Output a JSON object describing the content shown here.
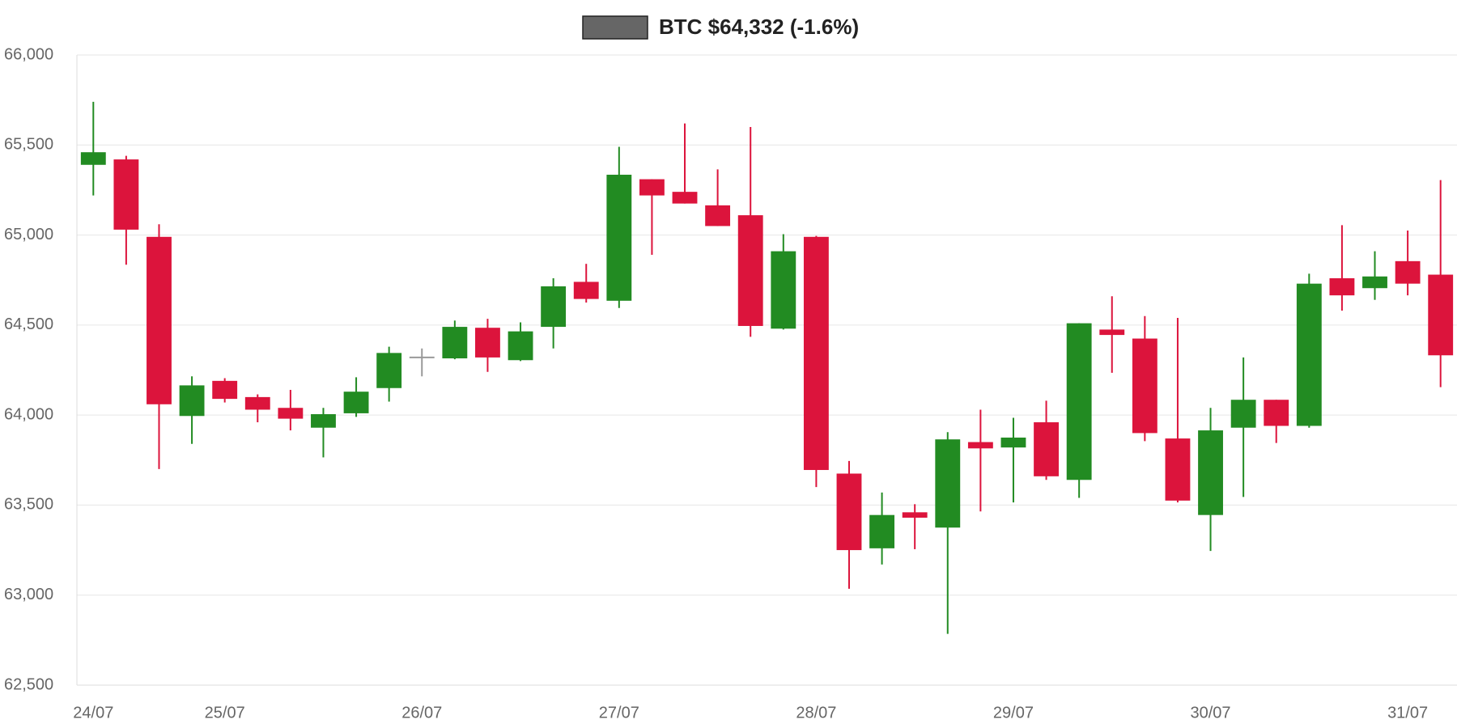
{
  "chart_data": {
    "type": "candlestick",
    "series": [
      {
        "name": "BTC $64,332 (-1.6%)",
        "color": "#666666",
        "open": [
          65390,
          65420,
          64990,
          63995,
          64190,
          64100,
          64040,
          63930,
          64010,
          64150,
          64320,
          64315,
          64485,
          64305,
          64490,
          64740,
          64635,
          65310,
          65240,
          65165,
          65110,
          64480,
          64990,
          63675,
          63260,
          63460,
          63375,
          63850,
          63820,
          63960,
          63640,
          64475,
          64425,
          63870,
          63445,
          63930,
          64085,
          63940,
          64760,
          64705,
          64855,
          64780
        ],
        "high": [
          65740,
          65440,
          65060,
          64215,
          64205,
          64115,
          64140,
          64040,
          64210,
          64380,
          64370,
          64525,
          64535,
          64515,
          64760,
          64840,
          65490,
          65310,
          65620,
          65365,
          65600,
          65005,
          64995,
          63745,
          63570,
          63505,
          63905,
          64030,
          63985,
          64080,
          64510,
          64660,
          64550,
          64540,
          64040,
          64320,
          64085,
          64785,
          65055,
          64910,
          65025,
          65305
        ],
        "low": [
          65220,
          64835,
          63700,
          63840,
          64070,
          63960,
          63915,
          63765,
          63990,
          64075,
          64215,
          64310,
          64240,
          64300,
          64370,
          64625,
          64595,
          64890,
          65175,
          65050,
          64435,
          64475,
          63600,
          63035,
          63170,
          63255,
          62785,
          63465,
          63515,
          63640,
          63540,
          64235,
          63855,
          63515,
          63245,
          63545,
          63845,
          63930,
          64580,
          64640,
          64665,
          64155
        ],
        "close": [
          65460,
          65030,
          64060,
          64165,
          64090,
          64030,
          63980,
          64005,
          64130,
          64345,
          64320,
          64490,
          64320,
          64465,
          64715,
          64645,
          65335,
          65220,
          65175,
          65050,
          64495,
          64910,
          63695,
          63250,
          63445,
          63430,
          63865,
          63815,
          63875,
          63660,
          64510,
          64445,
          63900,
          63525,
          63915,
          64085,
          63940,
          64730,
          64665,
          64770,
          64730,
          64332
        ]
      }
    ],
    "categories": [
      "24/07",
      null,
      null,
      null,
      "25/07",
      null,
      null,
      null,
      null,
      null,
      "26/07",
      null,
      null,
      null,
      null,
      null,
      "27/07",
      null,
      null,
      null,
      null,
      null,
      "28/07",
      null,
      null,
      null,
      null,
      null,
      "29/07",
      null,
      null,
      null,
      null,
      null,
      "30/07",
      null,
      null,
      null,
      null,
      null,
      "31/07",
      null
    ],
    "up_color": "#228b22",
    "down_color": "#dc143c",
    "flat_color": "#999999",
    "ylim": [
      62500,
      66000
    ],
    "yticks": [
      {
        "value": 62500,
        "label": "62,500"
      },
      {
        "value": 63000,
        "label": "63,000"
      },
      {
        "value": 63500,
        "label": "63,500"
      },
      {
        "value": 64000,
        "label": "64,000"
      },
      {
        "value": 64500,
        "label": "64,500"
      },
      {
        "value": 65000,
        "label": "65,000"
      },
      {
        "value": 65500,
        "label": "65,500"
      },
      {
        "value": 66000,
        "label": "66,000"
      }
    ],
    "grid": true
  }
}
